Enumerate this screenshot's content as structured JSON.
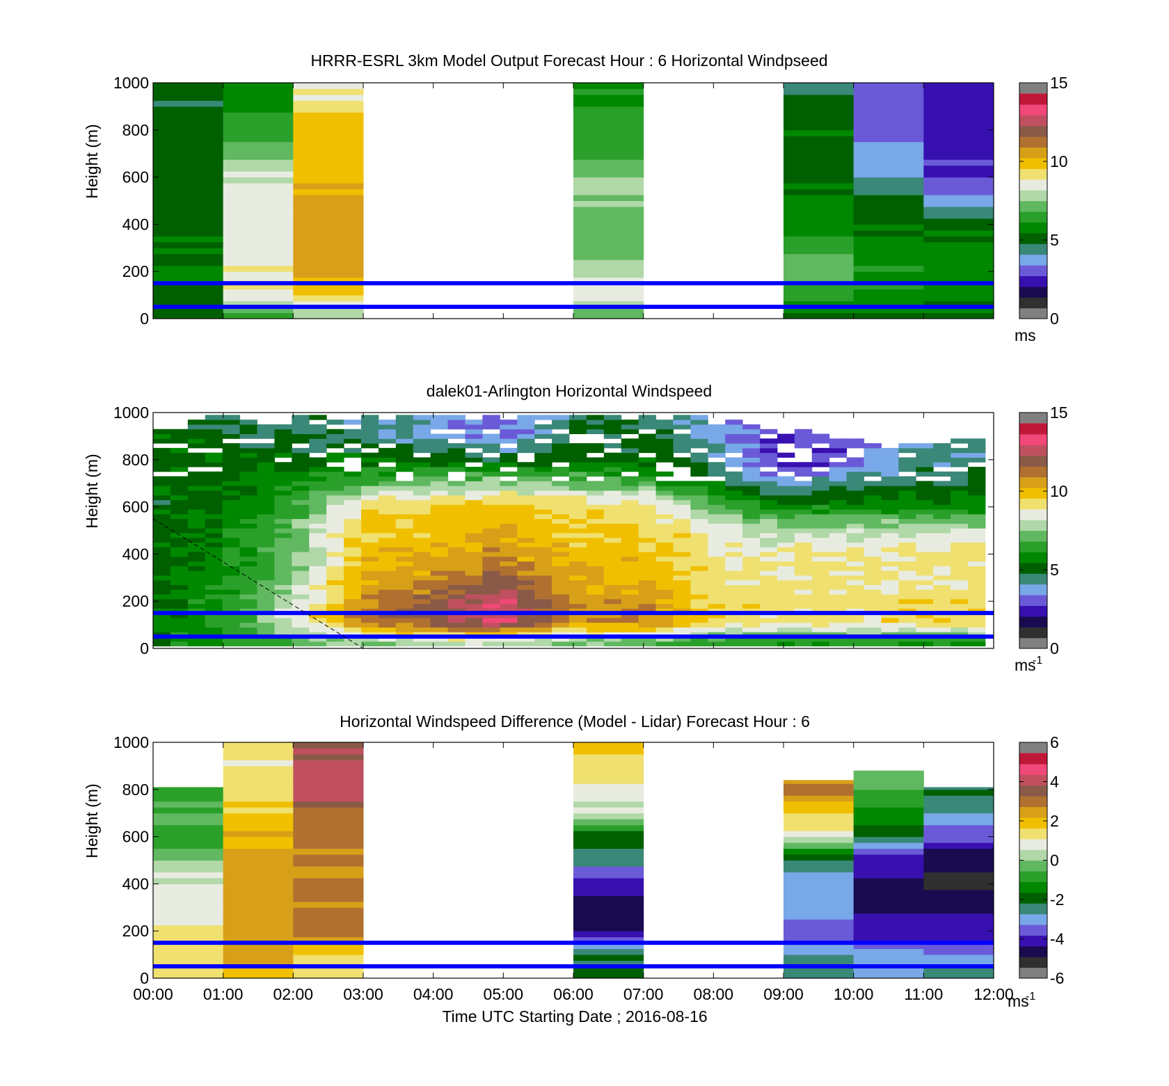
{
  "colors": {
    "overlay_line": "#0000ff",
    "axes": "#000000",
    "background": "#ffffff",
    "speed_colormap": [
      "#303030",
      "#1a0a50",
      "#3810b0",
      "#6a5ad8",
      "#79a8e8",
      "#3a8878",
      "#006000",
      "#008800",
      "#2aa02a",
      "#60b860",
      "#b0d8a8",
      "#e8ece0",
      "#f0e070",
      "#f0c000",
      "#d8a018",
      "#b07030",
      "#8a5a48",
      "#c05060",
      "#f04878",
      "#c01838"
    ]
  },
  "chart_data": [
    {
      "type": "heatmap",
      "title": "HRRR-ESRL 3km Model Output   Forecast Hour : 6 Horizontal Windpseed",
      "xlabel": "",
      "ylabel": "Height (m)",
      "ylim": [
        0,
        1000
      ],
      "yticks": [
        0,
        200,
        400,
        600,
        800,
        1000
      ],
      "ytick_labels": [
        "0",
        "200",
        "400",
        "600",
        "800",
        "1000"
      ],
      "xlim": [
        "00:00",
        "12:00"
      ],
      "xticks": [
        "00:00",
        "01:00",
        "02:00",
        "03:00",
        "04:00",
        "05:00",
        "06:00",
        "07:00",
        "08:00",
        "09:00",
        "10:00",
        "11:00",
        "12:00"
      ],
      "show_xtick_labels": false,
      "colorbar": {
        "min": 0,
        "max": 15,
        "ticks": [
          "0",
          "5",
          "10",
          "15"
        ],
        "unit": "ms",
        "unit_sup": ""
      },
      "hlines_m": [
        150,
        50
      ],
      "columns": [
        {
          "start": "00:00",
          "end": "01:00",
          "missing": false
        },
        {
          "start": "01:00",
          "end": "02:00",
          "missing": false
        },
        {
          "start": "02:00",
          "end": "03:00",
          "missing": false
        },
        {
          "start": "03:00",
          "end": "04:00",
          "missing": true
        },
        {
          "start": "04:00",
          "end": "05:00",
          "missing": true
        },
        {
          "start": "05:00",
          "end": "06:00",
          "missing": true
        },
        {
          "start": "06:00",
          "end": "07:00",
          "missing": false
        },
        {
          "start": "07:00",
          "end": "08:00",
          "missing": true
        },
        {
          "start": "08:00",
          "end": "09:00",
          "missing": true
        },
        {
          "start": "09:00",
          "end": "10:00",
          "missing": false
        },
        {
          "start": "10:00",
          "end": "11:00",
          "missing": false
        },
        {
          "start": "11:00",
          "end": "12:00",
          "missing": false
        }
      ],
      "profiles": [
        {
          "hour": "00:00",
          "heights": [
            20,
            100,
            200,
            300,
            400,
            500,
            600,
            700,
            800,
            900,
            1000
          ],
          "values": [
            5.0,
            5.2,
            5.4,
            5.2,
            5.0,
            5.0,
            4.8,
            4.8,
            4.8,
            4.6,
            4.6
          ]
        },
        {
          "hour": "01:00",
          "heights": [
            20,
            100,
            200,
            300,
            400,
            500,
            600,
            700,
            800,
            900,
            1000
          ],
          "values": [
            6.8,
            8.8,
            9.0,
            9.0,
            8.8,
            8.5,
            8.2,
            7.2,
            6.5,
            5.6,
            5.4
          ]
        },
        {
          "hour": "02:00",
          "heights": [
            20,
            100,
            200,
            300,
            400,
            500,
            600,
            700,
            800,
            900,
            1000
          ],
          "values": [
            7.5,
            9.8,
            10.5,
            10.8,
            10.8,
            10.7,
            10.5,
            10.2,
            10.0,
            9.5,
            8.5
          ]
        },
        {
          "hour": "06:00",
          "heights": [
            20,
            100,
            200,
            300,
            400,
            500,
            600,
            700,
            800,
            900,
            1000
          ],
          "values": [
            7.0,
            8.8,
            8.2,
            7.2,
            7.0,
            7.4,
            7.4,
            6.5,
            6.2,
            6.0,
            5.8
          ]
        },
        {
          "hour": "09:00",
          "heights": [
            20,
            100,
            200,
            300,
            400,
            500,
            600,
            700,
            800,
            900,
            1000
          ],
          "values": [
            5.2,
            6.5,
            7.0,
            6.5,
            5.8,
            5.2,
            5.0,
            5.0,
            5.0,
            5.0,
            3.6
          ]
        },
        {
          "hour": "10:00",
          "heights": [
            20,
            100,
            200,
            300,
            400,
            500,
            600,
            700,
            800,
            900,
            1000
          ],
          "values": [
            5.0,
            5.8,
            6.0,
            5.6,
            5.2,
            4.8,
            3.6,
            3.2,
            2.9,
            2.5,
            2.4
          ]
        },
        {
          "hour": "11:00",
          "heights": [
            20,
            100,
            200,
            300,
            400,
            500,
            600,
            700,
            800,
            900,
            1000
          ],
          "values": [
            5.0,
            5.8,
            5.8,
            5.4,
            5.0,
            3.4,
            2.2,
            2.0,
            1.9,
            1.9,
            1.9
          ]
        }
      ]
    },
    {
      "type": "heatmap",
      "title": "dalek01-Arlington  Horizontal Windspeed",
      "xlabel": "",
      "ylabel": "Height (m)",
      "ylim": [
        0,
        1000
      ],
      "yticks": [
        0,
        200,
        400,
        600,
        800,
        1000
      ],
      "ytick_labels": [
        "0",
        "200",
        "400",
        "600",
        "800",
        "1000"
      ],
      "xlim": [
        "00:00",
        "12:00"
      ],
      "xticks": [
        "00:00",
        "01:00",
        "02:00",
        "03:00",
        "04:00",
        "05:00",
        "06:00",
        "07:00",
        "08:00",
        "09:00",
        "10:00",
        "11:00",
        "12:00"
      ],
      "show_xtick_labels": false,
      "colorbar": {
        "min": 0,
        "max": 15,
        "ticks": [
          "0",
          "5",
          "10",
          "15"
        ],
        "unit": "ms",
        "unit_sup": "-1"
      },
      "hlines_m": [
        150,
        50
      ],
      "dashed_line": [
        {
          "time": "00:00",
          "height_m": 550
        },
        {
          "time": "03:00",
          "height_m": 0
        }
      ],
      "data_top_m": [
        930,
        930,
        970,
        980,
        980,
        970,
        960,
        970,
        980,
        990,
        990,
        990,
        990,
        990,
        990,
        990,
        990,
        990,
        990,
        990,
        990,
        990,
        990,
        990,
        990,
        990,
        990,
        990,
        990,
        990,
        990,
        980,
        970,
        960,
        950,
        940,
        930,
        920,
        900,
        890,
        880,
        870,
        870,
        870,
        870,
        880,
        880,
        880
      ],
      "profiles": [
        {
          "hour": "00:00",
          "heights": [
            20,
            100,
            200,
            300,
            400,
            500,
            600,
            700,
            800,
            900
          ],
          "values": [
            5.5,
            5.2,
            5.0,
            5.0,
            5.0,
            4.8,
            4.8,
            5.0,
            5.0,
            5.2
          ]
        },
        {
          "hour": "01:00",
          "heights": [
            20,
            100,
            200,
            300,
            400,
            500,
            600,
            700,
            800,
            900
          ],
          "values": [
            6.0,
            6.2,
            6.0,
            5.8,
            5.5,
            5.4,
            5.2,
            5.0,
            5.0,
            4.5
          ]
        },
        {
          "hour": "02:00",
          "heights": [
            20,
            100,
            200,
            300,
            400,
            500,
            600,
            700,
            800,
            900
          ],
          "values": [
            7.0,
            8.5,
            8.0,
            7.5,
            7.3,
            7.0,
            6.5,
            5.8,
            5.0,
            4.5
          ]
        },
        {
          "hour": "03:00",
          "heights": [
            20,
            100,
            200,
            300,
            400,
            500,
            600,
            700,
            800,
            900
          ],
          "values": [
            7.5,
            11.5,
            11.2,
            10.5,
            10.0,
            9.8,
            9.5,
            6.5,
            5.0,
            4.0
          ]
        },
        {
          "hour": "04:00",
          "heights": [
            20,
            100,
            200,
            300,
            400,
            500,
            600,
            700,
            800,
            900
          ],
          "values": [
            8.0,
            12.5,
            12.0,
            11.0,
            10.5,
            10.0,
            9.8,
            7.0,
            5.0,
            3.5
          ]
        },
        {
          "hour": "05:00",
          "heights": [
            20,
            100,
            200,
            300,
            400,
            500,
            600,
            700,
            800,
            900
          ],
          "values": [
            8.0,
            13.5,
            13.5,
            12.0,
            11.0,
            10.5,
            10.0,
            7.5,
            4.5,
            2.5
          ]
        },
        {
          "hour": "06:00",
          "heights": [
            20,
            100,
            200,
            300,
            400,
            500,
            600,
            700,
            800,
            900
          ],
          "values": [
            7.5,
            11.0,
            11.0,
            10.5,
            10.0,
            9.8,
            9.5,
            7.0,
            5.0,
            4.5
          ]
        },
        {
          "hour": "07:00",
          "heights": [
            20,
            100,
            200,
            300,
            400,
            500,
            600,
            700,
            800,
            900
          ],
          "values": [
            7.0,
            11.5,
            11.0,
            10.5,
            10.2,
            9.8,
            9.5,
            6.5,
            5.0,
            4.5
          ]
        },
        {
          "hour": "08:00",
          "heights": [
            20,
            100,
            200,
            300,
            400,
            500,
            600,
            700,
            800,
            900
          ],
          "values": [
            6.5,
            9.5,
            9.5,
            9.2,
            9.0,
            8.8,
            6.5,
            5.0,
            4.0,
            3.5
          ]
        },
        {
          "hour": "09:00",
          "heights": [
            20,
            100,
            200,
            300,
            400,
            500,
            600,
            700,
            800,
            900
          ],
          "values": [
            6.0,
            9.3,
            9.3,
            9.2,
            9.0,
            7.5,
            5.5,
            3.0,
            1.5,
            2.0
          ]
        },
        {
          "hour": "10:00",
          "heights": [
            20,
            100,
            200,
            300,
            400,
            500,
            600,
            700,
            800,
            900
          ],
          "values": [
            6.0,
            9.3,
            9.3,
            9.2,
            9.0,
            7.8,
            5.5,
            4.0,
            2.5,
            3.0
          ]
        },
        {
          "hour": "11:00",
          "heights": [
            20,
            100,
            200,
            300,
            400,
            500,
            600,
            700,
            800,
            900
          ],
          "values": [
            6.0,
            9.5,
            9.5,
            9.3,
            9.2,
            8.0,
            5.5,
            4.5,
            4.0,
            4.0
          ]
        },
        {
          "hour": "12:00",
          "heights": [
            20,
            100,
            200,
            300,
            400,
            500,
            600,
            700,
            800,
            900
          ],
          "values": [
            6.0,
            9.5,
            9.5,
            9.3,
            9.2,
            8.0,
            5.5,
            4.5,
            4.0,
            4.0
          ]
        }
      ]
    },
    {
      "type": "heatmap",
      "title": "Horizontal Windspeed Difference (Model - Lidar) Forecast Hour : 6",
      "xlabel": "Time UTC  Starting Date ; 2016-08-16",
      "ylabel": "Height (m)",
      "ylim": [
        0,
        1000
      ],
      "yticks": [
        0,
        200,
        400,
        600,
        800,
        1000
      ],
      "ytick_labels": [
        "0",
        "200",
        "400",
        "600",
        "800",
        "1000"
      ],
      "xlim": [
        "00:00",
        "12:00"
      ],
      "xticks": [
        "00:00",
        "01:00",
        "02:00",
        "03:00",
        "04:00",
        "05:00",
        "06:00",
        "07:00",
        "08:00",
        "09:00",
        "10:00",
        "11:00",
        "12:00"
      ],
      "show_xtick_labels": true,
      "colorbar": {
        "min": -6,
        "max": 6,
        "ticks": [
          "-6",
          "-4",
          "-2",
          "0",
          "2",
          "4",
          "6"
        ],
        "unit": "ms",
        "unit_sup": "-1"
      },
      "hlines_m": [
        150,
        50
      ],
      "columns": [
        {
          "start": "00:00",
          "end": "01:00",
          "missing": false,
          "top_m": 810
        },
        {
          "start": "01:00",
          "end": "02:00",
          "missing": false,
          "top_m": 1000
        },
        {
          "start": "02:00",
          "end": "03:00",
          "missing": false,
          "top_m": 1000
        },
        {
          "start": "03:00",
          "end": "04:00",
          "missing": true
        },
        {
          "start": "04:00",
          "end": "05:00",
          "missing": true
        },
        {
          "start": "05:00",
          "end": "06:00",
          "missing": true
        },
        {
          "start": "06:00",
          "end": "07:00",
          "missing": false,
          "top_m": 1000
        },
        {
          "start": "07:00",
          "end": "08:00",
          "missing": true
        },
        {
          "start": "08:00",
          "end": "09:00",
          "missing": true
        },
        {
          "start": "09:00",
          "end": "10:00",
          "missing": false,
          "top_m": 840
        },
        {
          "start": "10:00",
          "end": "11:00",
          "missing": false,
          "top_m": 880
        },
        {
          "start": "11:00",
          "end": "12:00",
          "missing": false,
          "top_m": 810
        }
      ],
      "profiles": [
        {
          "hour": "00:00",
          "heights": [
            20,
            100,
            200,
            300,
            400,
            500,
            600,
            700,
            800
          ],
          "values": [
            1.5,
            1.5,
            1.3,
            1.0,
            0.8,
            0.0,
            -1.0,
            -0.5,
            -1.0
          ]
        },
        {
          "hour": "01:00",
          "heights": [
            20,
            100,
            200,
            300,
            400,
            500,
            600,
            700,
            800,
            900,
            1000
          ],
          "values": [
            2.0,
            2.5,
            2.8,
            3.0,
            2.8,
            2.5,
            2.3,
            2.0,
            1.5,
            1.3,
            1.2
          ]
        },
        {
          "hour": "02:00",
          "heights": [
            20,
            100,
            200,
            300,
            400,
            500,
            600,
            700,
            800,
            900,
            1000
          ],
          "values": [
            1.5,
            1.8,
            3.0,
            3.2,
            3.0,
            3.0,
            3.2,
            3.5,
            4.5,
            4.5,
            4.0
          ]
        },
        {
          "hour": "06:00",
          "heights": [
            20,
            100,
            200,
            300,
            400,
            500,
            600,
            700,
            800,
            900,
            1000
          ],
          "values": [
            -2.0,
            -2.5,
            -5.0,
            -5.0,
            -4.5,
            -3.0,
            -2.0,
            0.5,
            1.0,
            1.5,
            2.0
          ]
        },
        {
          "hour": "09:00",
          "heights": [
            20,
            100,
            200,
            300,
            400,
            500,
            600,
            700,
            800
          ],
          "values": [
            -2.5,
            -3.0,
            -4.0,
            -3.5,
            -3.5,
            -2.5,
            1.0,
            2.0,
            3.0
          ]
        },
        {
          "hour": "10:00",
          "heights": [
            20,
            100,
            200,
            300,
            400,
            500,
            600,
            700,
            800
          ],
          "values": [
            -3.0,
            -3.5,
            -4.5,
            -5.0,
            -5.0,
            -4.5,
            -2.5,
            -1.5,
            -0.5
          ]
        },
        {
          "hour": "11:00",
          "heights": [
            20,
            100,
            200,
            300,
            400,
            500,
            600,
            700,
            800
          ],
          "values": [
            -3.0,
            -3.5,
            -4.5,
            -5.0,
            -5.5,
            -5.5,
            -4.0,
            -3.0,
            -2.5
          ]
        }
      ]
    }
  ]
}
